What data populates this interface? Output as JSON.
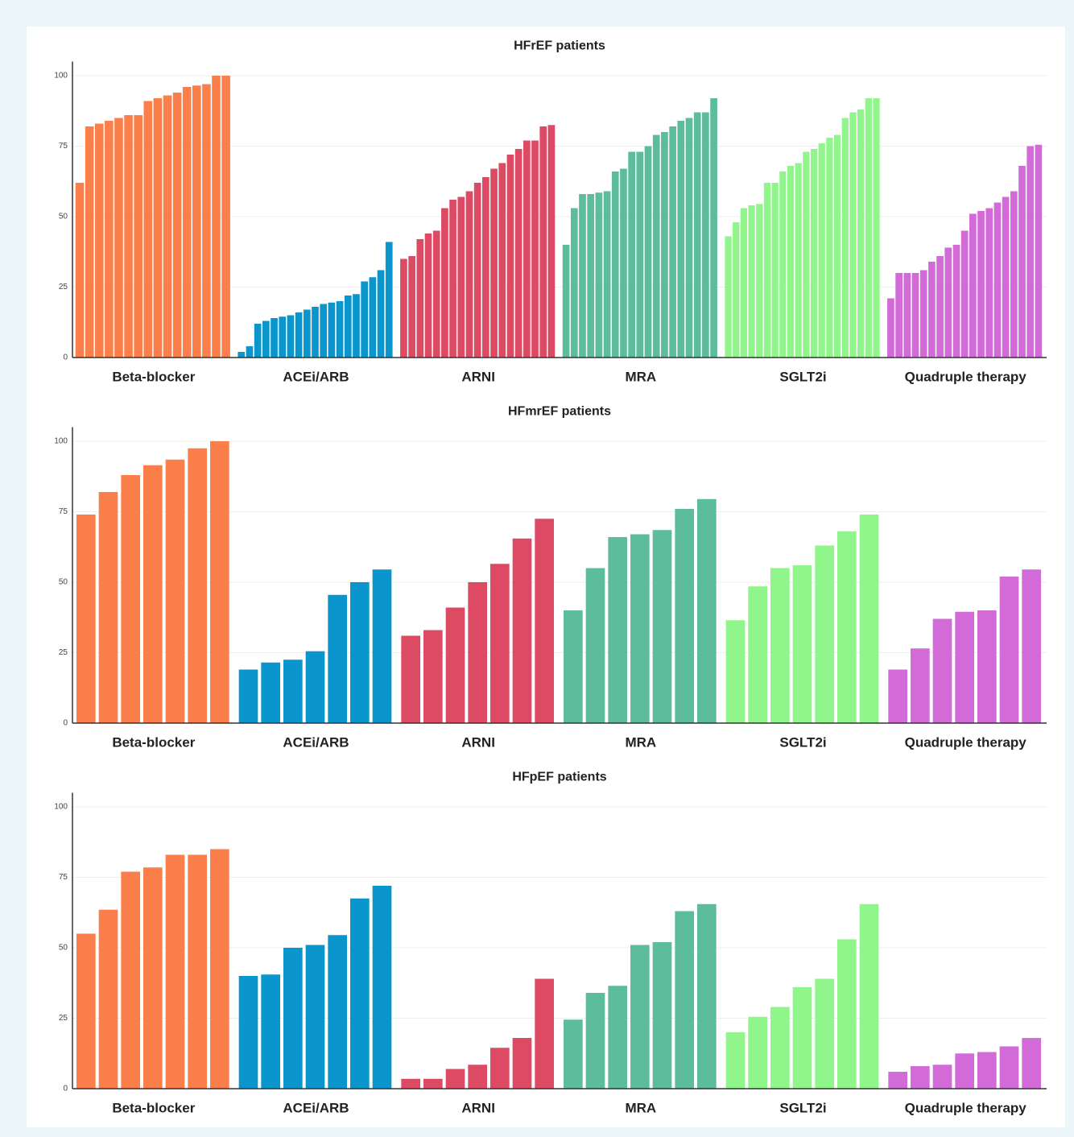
{
  "chart_data": [
    {
      "type": "bar",
      "title": "HFrEF patients",
      "ylim": [
        0,
        105
      ],
      "yticks": [
        0,
        25,
        50,
        75,
        100
      ],
      "grid": true,
      "groups": [
        {
          "name": "Beta-blocker",
          "color": "#fa7f4b",
          "values": [
            62,
            82,
            83,
            84,
            85,
            86,
            86,
            91,
            92,
            93,
            94,
            96,
            96.5,
            97,
            100,
            100
          ]
        },
        {
          "name": "ACEi/ARB",
          "color": "#0a96cc",
          "values": [
            2,
            4,
            12,
            13,
            14,
            14.5,
            15,
            16,
            17,
            18,
            19,
            19.5,
            20,
            22,
            22.5,
            27,
            28.5,
            31,
            41
          ]
        },
        {
          "name": "ARNI",
          "color": "#dc4a63",
          "values": [
            35,
            36,
            42,
            44,
            45,
            53,
            56,
            57,
            59,
            62,
            64,
            67,
            69,
            72,
            74,
            77,
            77,
            82,
            82.5
          ]
        },
        {
          "name": "MRA",
          "color": "#5dbc9b",
          "values": [
            40,
            53,
            58,
            58,
            58.5,
            59,
            66,
            67,
            73,
            73,
            75,
            79,
            80,
            82,
            84,
            85,
            87,
            87,
            92
          ]
        },
        {
          "name": "SGLT2i",
          "color": "#90f58a",
          "values": [
            43,
            48,
            53,
            54,
            54.5,
            62,
            62,
            66,
            68,
            69,
            73,
            74,
            76,
            78,
            79,
            85,
            87,
            88,
            92,
            92
          ]
        },
        {
          "name": "Quadruple therapy",
          "color": "#d26ad8",
          "values": [
            21,
            30,
            30,
            30,
            31,
            34,
            36,
            39,
            40,
            45,
            51,
            52,
            53,
            55,
            57,
            59,
            68,
            75,
            75.5
          ]
        }
      ]
    },
    {
      "type": "bar",
      "title": "HFmrEF patients",
      "ylim": [
        0,
        105
      ],
      "yticks": [
        0,
        25,
        50,
        75,
        100
      ],
      "grid": true,
      "groups": [
        {
          "name": "Beta-blocker",
          "color": "#fa7f4b",
          "values": [
            74,
            82,
            88,
            91.5,
            93.5,
            97.5,
            100
          ]
        },
        {
          "name": "ACEi/ARB",
          "color": "#0a96cc",
          "values": [
            19,
            21.5,
            22.5,
            25.5,
            45.5,
            50,
            54.5
          ]
        },
        {
          "name": "ARNI",
          "color": "#dc4a63",
          "values": [
            31,
            33,
            41,
            50,
            56.5,
            65.5,
            72.5
          ]
        },
        {
          "name": "MRA",
          "color": "#5dbc9b",
          "values": [
            40,
            55,
            66,
            67,
            68.5,
            76,
            79.5
          ]
        },
        {
          "name": "SGLT2i",
          "color": "#90f58a",
          "values": [
            36.5,
            48.5,
            55,
            56,
            63,
            68,
            74
          ]
        },
        {
          "name": "Quadruple therapy",
          "color": "#d26ad8",
          "values": [
            19,
            26.5,
            37,
            39.5,
            40,
            52,
            54.5
          ]
        }
      ]
    },
    {
      "type": "bar",
      "title": "HFpEF patients",
      "ylim": [
        0,
        105
      ],
      "yticks": [
        0,
        25,
        50,
        75,
        100
      ],
      "grid": true,
      "groups": [
        {
          "name": "Beta-blocker",
          "color": "#fa7f4b",
          "values": [
            55,
            63.5,
            77,
            78.5,
            83,
            83,
            85
          ]
        },
        {
          "name": "ACEi/ARB",
          "color": "#0a96cc",
          "values": [
            40,
            40.5,
            50,
            51,
            54.5,
            67.5,
            72
          ]
        },
        {
          "name": "ARNI",
          "color": "#dc4a63",
          "values": [
            3.5,
            3.5,
            7,
            8.5,
            14.5,
            18,
            39
          ]
        },
        {
          "name": "MRA",
          "color": "#5dbc9b",
          "values": [
            24.5,
            34,
            36.5,
            51,
            52,
            63,
            65.5
          ]
        },
        {
          "name": "SGLT2i",
          "color": "#90f58a",
          "values": [
            20,
            25.5,
            29,
            36,
            39,
            53,
            65.5
          ]
        },
        {
          "name": "Quadruple therapy",
          "color": "#d26ad8",
          "values": [
            6,
            8,
            8.5,
            12.5,
            13,
            15,
            18
          ]
        }
      ]
    }
  ]
}
